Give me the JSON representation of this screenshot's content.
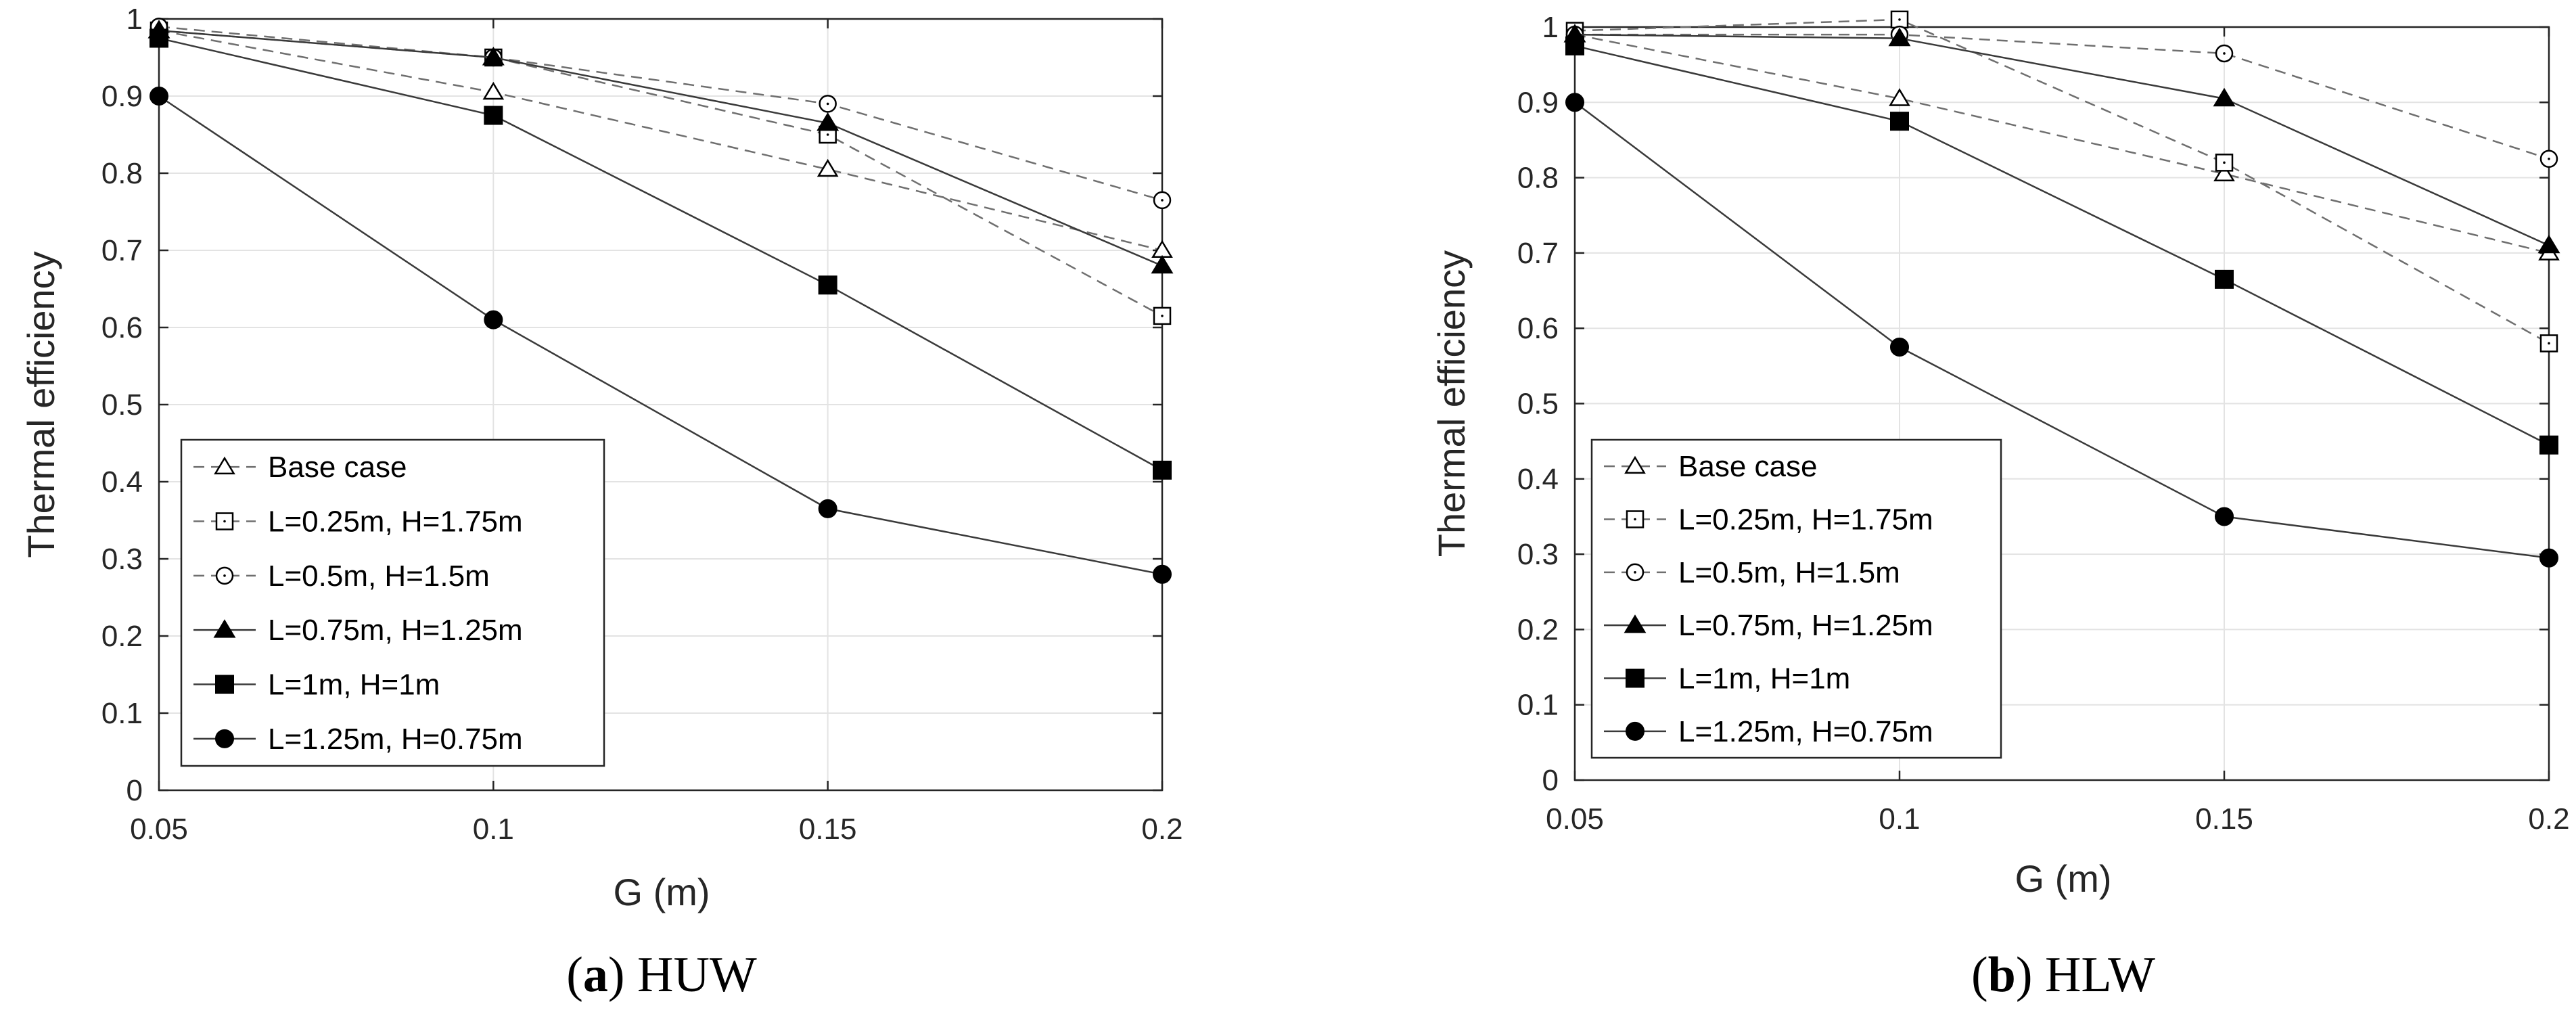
{
  "chart_data": [
    {
      "type": "line",
      "panel_letter": "a",
      "title": "HUW",
      "xlabel": "G (m)",
      "ylabel": "Thermal efficiency",
      "xlim": [
        0.05,
        0.2
      ],
      "ylim": [
        0,
        1
      ],
      "xticks": [
        "0.05",
        "0.1",
        "0.15",
        "0.2"
      ],
      "yticks": [
        "0",
        "0.1",
        "0.2",
        "0.3",
        "0.4",
        "0.5",
        "0.6",
        "0.7",
        "0.8",
        "0.9",
        "1"
      ],
      "grid": true,
      "legend_position": "bottom-left",
      "x": [
        0.05,
        0.1,
        0.15,
        0.2
      ],
      "series": [
        {
          "name": "Base case",
          "marker": "triangle-open",
          "line": "dashed",
          "values": [
            0.985,
            0.905,
            0.805,
            0.7
          ]
        },
        {
          "name": "L=0.25m, H=1.75m",
          "marker": "square-open",
          "line": "dashed",
          "values": [
            0.985,
            0.95,
            0.85,
            0.615
          ]
        },
        {
          "name": "L=0.5m, H=1.5m",
          "marker": "circle-open",
          "line": "dashed",
          "values": [
            0.99,
            0.95,
            0.89,
            0.765
          ]
        },
        {
          "name": "L=0.75m, H=1.25m",
          "marker": "triangle-filled",
          "line": "solid",
          "values": [
            0.985,
            0.95,
            0.865,
            0.68
          ]
        },
        {
          "name": "L=1m, H=1m",
          "marker": "square-filled",
          "line": "solid",
          "values": [
            0.975,
            0.875,
            0.655,
            0.415
          ]
        },
        {
          "name": "L=1.25m, H=0.75m",
          "marker": "circle-filled",
          "line": "solid",
          "values": [
            0.9,
            0.61,
            0.365,
            0.28
          ]
        }
      ]
    },
    {
      "type": "line",
      "panel_letter": "b",
      "title": "HLW",
      "xlabel": "G (m)",
      "ylabel": "Thermal efficiency",
      "xlim": [
        0.05,
        0.2
      ],
      "ylim": [
        0,
        1
      ],
      "xticks": [
        "0.05",
        "0.1",
        "0.15",
        "0.2"
      ],
      "yticks": [
        "0",
        "0.1",
        "0.2",
        "0.3",
        "0.4",
        "0.5",
        "0.6",
        "0.7",
        "0.8",
        "0.9",
        "1"
      ],
      "grid": true,
      "legend_position": "bottom-left",
      "x": [
        0.05,
        0.1,
        0.15,
        0.2
      ],
      "series": [
        {
          "name": "Base case",
          "marker": "triangle-open",
          "line": "dashed",
          "values": [
            0.99,
            0.905,
            0.805,
            0.7
          ]
        },
        {
          "name": "L=0.25m, H=1.75m",
          "marker": "square-open",
          "line": "dashed",
          "values": [
            0.995,
            1.01,
            0.82,
            0.58
          ]
        },
        {
          "name": "L=0.5m, H=1.5m",
          "marker": "circle-open",
          "line": "dashed",
          "values": [
            0.99,
            0.99,
            0.965,
            0.825
          ]
        },
        {
          "name": "L=0.75m, H=1.25m",
          "marker": "triangle-filled",
          "line": "solid",
          "values": [
            0.99,
            0.985,
            0.905,
            0.71
          ]
        },
        {
          "name": "L=1m, H=1m",
          "marker": "square-filled",
          "line": "solid",
          "values": [
            0.975,
            0.875,
            0.665,
            0.445
          ]
        },
        {
          "name": "L=1.25m, H=0.75m",
          "marker": "circle-filled",
          "line": "solid",
          "values": [
            0.9,
            0.575,
            0.35,
            0.295
          ]
        }
      ]
    }
  ]
}
